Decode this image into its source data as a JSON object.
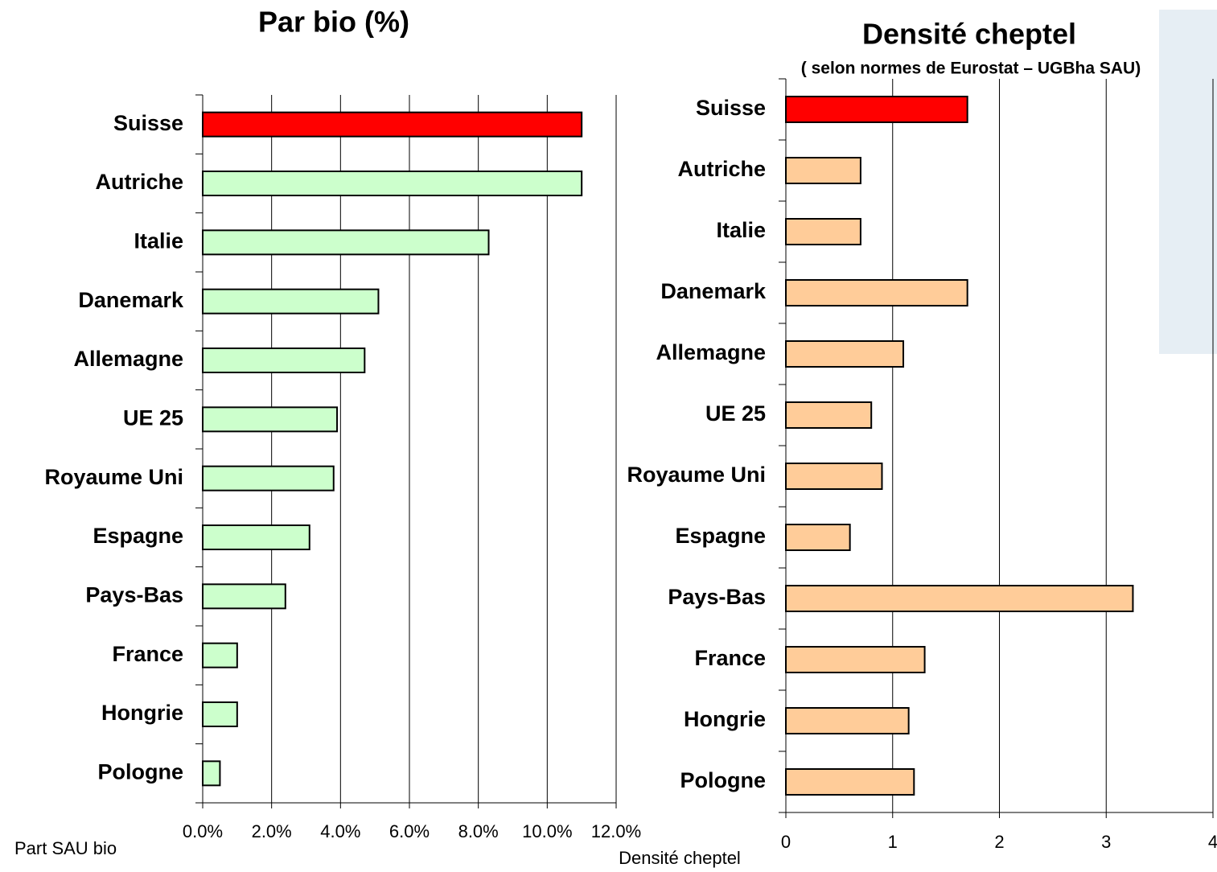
{
  "chart_data": [
    {
      "type": "bar",
      "orientation": "horizontal",
      "title": "Par bio (%)",
      "xlabel": "Part SAU bio",
      "categories": [
        "Suisse",
        "Autriche",
        "Italie",
        "Danemark",
        "Allemagne",
        "UE 25",
        "Royaume Uni",
        "Espagne",
        "Pays-Bas",
        "France",
        "Hongrie",
        "Pologne"
      ],
      "values": [
        11.0,
        11.0,
        8.3,
        5.1,
        4.7,
        3.9,
        3.8,
        3.1,
        2.4,
        1.0,
        1.0,
        0.5
      ],
      "colors": [
        "#ff0000",
        "#ccffcc",
        "#ccffcc",
        "#ccffcc",
        "#ccffcc",
        "#ccffcc",
        "#ccffcc",
        "#ccffcc",
        "#ccffcc",
        "#ccffcc",
        "#ccffcc",
        "#ccffcc"
      ],
      "xlim": [
        0,
        12
      ],
      "xticks": [
        {
          "value": 0,
          "label": "0.0%"
        },
        {
          "value": 2,
          "label": "2.0%"
        },
        {
          "value": 4,
          "label": "4.0%"
        },
        {
          "value": 6,
          "label": "6.0%"
        },
        {
          "value": 8,
          "label": "8.0%"
        },
        {
          "value": 10,
          "label": "10.0%"
        },
        {
          "value": 12,
          "label": "12.0%"
        }
      ],
      "grid": true
    },
    {
      "type": "bar",
      "orientation": "horizontal",
      "title": "Densité cheptel",
      "subtitle": "( selon normes de Eurostat – UGBha SAU)",
      "xlabel": "Densité cheptel",
      "categories": [
        "Suisse",
        "Autriche",
        "Italie",
        "Danemark",
        "Allemagne",
        "UE 25",
        "Royaume Uni",
        "Espagne",
        "Pays-Bas",
        "France",
        "Hongrie",
        "Pologne"
      ],
      "values": [
        1.7,
        0.7,
        0.7,
        1.7,
        1.1,
        0.8,
        0.9,
        0.6,
        3.25,
        1.3,
        1.15,
        1.2
      ],
      "colors": [
        "#ff0000",
        "#ffcc99",
        "#ffcc99",
        "#ffcc99",
        "#ffcc99",
        "#ffcc99",
        "#ffcc99",
        "#ffcc99",
        "#ffcc99",
        "#ffcc99",
        "#ffcc99",
        "#ffcc99"
      ],
      "xlim": [
        0,
        4
      ],
      "xticks": [
        0,
        1,
        2,
        3,
        4
      ],
      "grid": true
    }
  ]
}
